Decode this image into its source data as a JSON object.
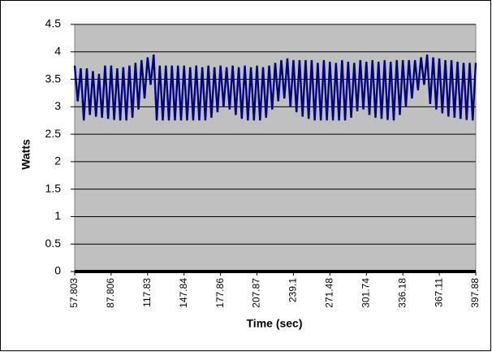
{
  "chart_data": {
    "type": "line",
    "x_label": "Time (sec)",
    "y_label": "Watts",
    "categories": [
      "57.803",
      null,
      null,
      null,
      null,
      null,
      null,
      null,
      null,
      null,
      null,
      null,
      "87.806",
      null,
      null,
      null,
      null,
      null,
      null,
      null,
      null,
      null,
      null,
      null,
      "117.83",
      null,
      null,
      null,
      null,
      null,
      null,
      null,
      null,
      null,
      null,
      null,
      "147.84",
      null,
      null,
      null,
      null,
      null,
      null,
      null,
      null,
      null,
      null,
      null,
      "177.86",
      null,
      null,
      null,
      null,
      null,
      null,
      null,
      null,
      null,
      null,
      null,
      "207.87",
      null,
      null,
      null,
      null,
      null,
      null,
      null,
      null,
      null,
      null,
      null,
      "239.1",
      null,
      null,
      null,
      null,
      null,
      null,
      null,
      null,
      null,
      null,
      null,
      "271.48",
      null,
      null,
      null,
      null,
      null,
      null,
      null,
      null,
      null,
      null,
      null,
      "301.74",
      null,
      null,
      null,
      null,
      null,
      null,
      null,
      null,
      null,
      null,
      null,
      "336.18",
      null,
      null,
      null,
      null,
      null,
      null,
      null,
      null,
      null,
      null,
      null,
      "367.11",
      null,
      null,
      null,
      null,
      null,
      null,
      null,
      null,
      null,
      null,
      null,
      "397.88"
    ],
    "series": [
      {
        "color": "#000080",
        "values": [
          3.75,
          3.1,
          3.7,
          2.75,
          3.7,
          2.85,
          3.65,
          2.82,
          3.6,
          2.8,
          3.75,
          2.78,
          3.75,
          2.76,
          3.7,
          2.75,
          3.72,
          2.75,
          3.75,
          2.8,
          3.8,
          2.95,
          3.85,
          3.15,
          3.9,
          3.4,
          3.95,
          2.75,
          3.75,
          2.75,
          3.75,
          2.75,
          3.75,
          2.75,
          3.75,
          2.75,
          3.75,
          2.75,
          3.72,
          2.75,
          3.75,
          2.75,
          3.72,
          2.75,
          3.75,
          2.8,
          3.72,
          2.9,
          3.75,
          3.0,
          3.72,
          2.95,
          3.75,
          2.85,
          3.72,
          2.78,
          3.75,
          2.75,
          3.72,
          2.75,
          3.75,
          2.75,
          3.72,
          2.8,
          3.75,
          2.95,
          3.8,
          3.1,
          3.85,
          3.15,
          3.88,
          3.0,
          3.85,
          2.9,
          3.85,
          2.82,
          3.85,
          2.78,
          3.85,
          2.75,
          3.8,
          2.75,
          3.85,
          2.75,
          3.82,
          2.75,
          3.8,
          2.75,
          3.85,
          2.75,
          3.82,
          2.8,
          3.8,
          2.92,
          3.85,
          2.95,
          3.82,
          2.85,
          3.85,
          2.8,
          3.82,
          2.78,
          3.85,
          2.76,
          3.82,
          2.75,
          3.85,
          2.85,
          3.85,
          3.0,
          3.85,
          3.15,
          3.85,
          3.3,
          3.9,
          3.4,
          3.95,
          3.05,
          3.9,
          2.95,
          3.88,
          2.88,
          3.85,
          2.82,
          3.85,
          2.8,
          3.82,
          2.78,
          3.8,
          2.76,
          3.8,
          2.75,
          3.8
        ]
      }
    ],
    "ylim": [
      0,
      4.5
    ],
    "yticks": [
      0,
      0.5,
      1,
      1.5,
      2,
      2.5,
      3,
      3.5,
      4,
      4.5
    ],
    "grid": true
  }
}
